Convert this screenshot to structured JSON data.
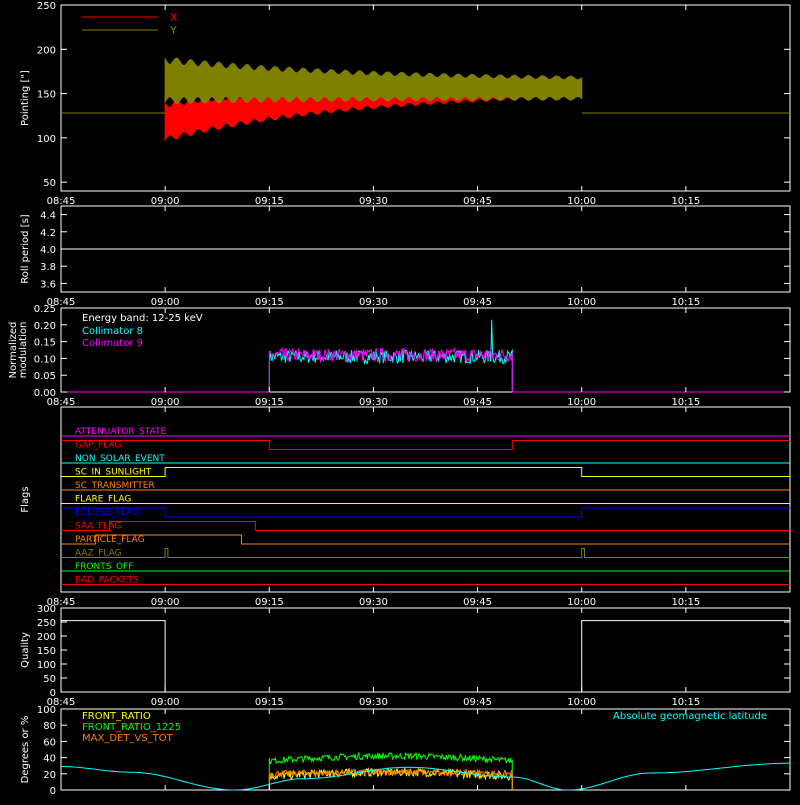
{
  "colors": {
    "background": "#000000",
    "frame": "#ffffff",
    "red": "#ff0000",
    "olive": "#808000",
    "cyan": "#00ffff",
    "magenta": "#ff00ff",
    "green": "#00ff00",
    "orange": "#ff8000",
    "yellow": "#ffff00",
    "blue": "#0000ff",
    "white": "#ffffff",
    "darkorange": "#cc6600"
  },
  "time_axis": {
    "range": [
      "08:45",
      "10:30"
    ],
    "tick_labels": [
      "08:45",
      "09:00",
      "09:15",
      "09:30",
      "09:45",
      "10:00",
      "10:15"
    ]
  },
  "chart_data": [
    {
      "id": "pointing",
      "type": "area",
      "ylabel": "Pointing [\"]",
      "ylim": [
        40,
        250
      ],
      "yticks": [
        50,
        100,
        150,
        200,
        250
      ],
      "legend": [
        "X",
        "Y"
      ],
      "series": [
        {
          "name": "X",
          "color": "#ff0000",
          "baseline": 128,
          "active_range": [
            "09:00",
            "10:00"
          ],
          "center_start": 118,
          "center_end": 160,
          "amplitude_start": 38,
          "amplitude_end": 14
        },
        {
          "name": "Y",
          "color": "#808000",
          "baseline": 128,
          "active_range": [
            "09:00",
            "10:00"
          ],
          "center_start": 165,
          "center_end": 155,
          "amplitude_start": 45,
          "amplitude_end": 20
        }
      ]
    },
    {
      "id": "roll-period",
      "type": "line",
      "ylabel": "Roll period [s]",
      "ylim": [
        3.5,
        4.5
      ],
      "yticks": [
        3.6,
        3.8,
        4.0,
        4.2,
        4.4
      ],
      "series": [
        {
          "name": "",
          "color": "#ffffff",
          "value": 4.0
        }
      ]
    },
    {
      "id": "modulation",
      "type": "line",
      "ylabel": "Normalized modulation",
      "ylim": [
        0,
        0.25
      ],
      "yticks": [
        0.0,
        0.05,
        0.1,
        0.15,
        0.2,
        0.25
      ],
      "annotation": "Energy band: 12-25 keV",
      "legend": [
        "Collimator 8",
        "Collimator 9"
      ],
      "series": [
        {
          "name": "Collimator 8",
          "color": "#00ffff",
          "active_range": [
            "09:15",
            "09:50"
          ],
          "mean": 0.105,
          "spread": 0.02,
          "spike": {
            "time": "09:47",
            "value": 0.215
          }
        },
        {
          "name": "Collimator 9",
          "color": "#ff00ff",
          "active_range": [
            "09:15",
            "09:50"
          ],
          "mean": 0.11,
          "spread": 0.02
        }
      ]
    },
    {
      "id": "flags",
      "type": "line",
      "ylabel": "Flags",
      "flags": [
        {
          "label": "ATTENUATOR_STATE",
          "color": "#ff00ff",
          "high": []
        },
        {
          "label": "GAP_FLAG",
          "color": "#ff0000",
          "high": [
            [
              "08:45",
              "09:15"
            ],
            [
              "09:50",
              "10:30"
            ]
          ]
        },
        {
          "label": "NON_SOLAR_EVENT",
          "color": "#00ffff",
          "high": []
        },
        {
          "label": "SC_IN_SUNLIGHT",
          "color": "#ffff00",
          "high": [
            [
              "09:00",
              "10:00"
            ]
          ]
        },
        {
          "label": "SC_TRANSMITTER",
          "color": "#ff8000",
          "high": []
        },
        {
          "label": "FLARE_FLAG",
          "color": "#ffff00",
          "high": []
        },
        {
          "label": "ECLIPSE_FLAG",
          "color": "#0000ff",
          "high": [
            [
              "08:45",
              "09:00"
            ],
            [
              "10:00",
              "10:30"
            ]
          ]
        },
        {
          "label": "SAA_FLAG",
          "color": "#ff0000",
          "high": [
            [
              "08:52",
              "09:13"
            ]
          ]
        },
        {
          "label": "PARTICLE_FLAG",
          "color": "#ff8000",
          "high": [
            [
              "08:50",
              "09:11"
            ]
          ]
        },
        {
          "label": "AAZ_FLAG",
          "color": "#808000",
          "high": [
            [
              "09:00",
              "09:00.4"
            ],
            [
              "10:00",
              "10:00.4"
            ]
          ]
        },
        {
          "label": "FRONTS_OFF",
          "color": "#00ff00",
          "high": []
        },
        {
          "label": "BAD_PACKETS",
          "color": "#ff0000",
          "high": []
        }
      ]
    },
    {
      "id": "quality",
      "type": "line",
      "ylabel": "Quality",
      "ylim": [
        0,
        300
      ],
      "yticks": [
        0,
        50,
        100,
        150,
        200,
        250,
        300
      ],
      "series": [
        {
          "name": "",
          "color": "#ffffff",
          "points": [
            [
              "08:45",
              255
            ],
            [
              "09:00",
              255
            ],
            [
              "09:00",
              0
            ],
            [
              "10:00",
              0
            ],
            [
              "10:00",
              255
            ],
            [
              "10:30",
              255
            ]
          ]
        }
      ]
    },
    {
      "id": "geomag",
      "type": "line",
      "ylabel": "Degrees or %",
      "ylim": [
        0,
        100
      ],
      "yticks": [
        0,
        20,
        40,
        60,
        80,
        100
      ],
      "legend": [
        "FRONT_RATIO",
        "FRONT_RATIO_1225",
        "MAX_DET_VS_TOT"
      ],
      "annotation": "Absolute geomagnetic latitude",
      "series": [
        {
          "name": "FRONT_RATIO",
          "color": "#ffff00",
          "active_range": [
            "09:15",
            "09:50"
          ],
          "mean_start": 17,
          "mean_end": 22,
          "spread": 5
        },
        {
          "name": "FRONT_RATIO_1225",
          "color": "#00ff00",
          "active_range": [
            "09:15",
            "09:50"
          ],
          "mean_start": 36,
          "mean_end": 42,
          "spread": 4
        },
        {
          "name": "MAX_DET_VS_TOT",
          "color": "#ff8000",
          "active_range": [
            "09:15",
            "09:50"
          ],
          "mean_start": 20,
          "mean_end": 22,
          "spread": 4
        },
        {
          "name": "Absolute geomagnetic latitude",
          "color": "#00ffff",
          "points": [
            [
              "08:45",
              29
            ],
            [
              "08:55",
              22
            ],
            [
              "09:10",
              0
            ],
            [
              "09:20",
              14
            ],
            [
              "09:35",
              28
            ],
            [
              "09:50",
              16
            ],
            [
              "09:58",
              0
            ],
            [
              "10:10",
              21
            ],
            [
              "10:30",
              33
            ]
          ]
        }
      ]
    }
  ]
}
